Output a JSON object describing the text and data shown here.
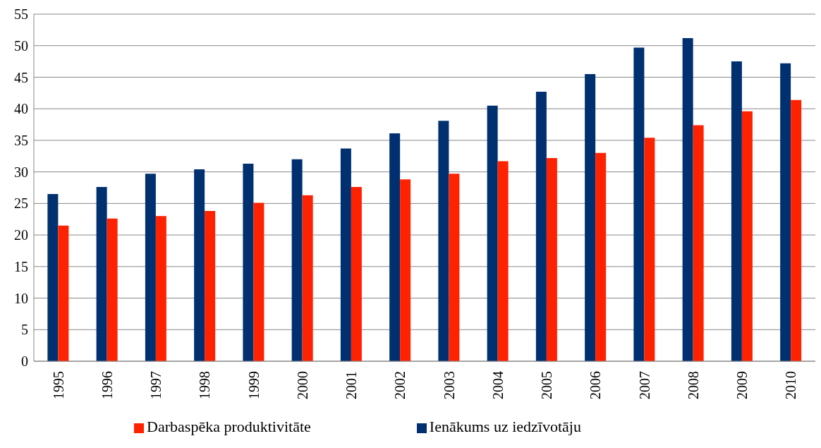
{
  "chart_data": {
    "type": "bar",
    "categories": [
      "1995",
      "1996",
      "1997",
      "1998",
      "1999",
      "2000",
      "2001",
      "2002",
      "2003",
      "2004",
      "2005",
      "2006",
      "2007",
      "2008",
      "2009",
      "2010"
    ],
    "series": [
      {
        "name": "Ienākums uz iedzīvotāju",
        "color": "#003070",
        "values": [
          26.5,
          27.6,
          29.7,
          30.4,
          31.3,
          32.0,
          33.7,
          36.1,
          38.1,
          40.5,
          42.7,
          45.5,
          49.7,
          51.2,
          47.5,
          47.2
        ]
      },
      {
        "name": "Darbaspēka produktivitāte",
        "color": "#ff2200",
        "values": [
          21.5,
          22.6,
          23.0,
          23.8,
          25.1,
          26.3,
          27.6,
          28.8,
          29.7,
          31.7,
          32.2,
          33.0,
          35.4,
          37.4,
          39.6,
          41.4
        ]
      }
    ],
    "ylim": [
      0,
      55
    ],
    "yticks": [
      0,
      5,
      10,
      15,
      20,
      25,
      30,
      35,
      40,
      45,
      50,
      55
    ],
    "grid": "y",
    "legend": "bottom"
  }
}
